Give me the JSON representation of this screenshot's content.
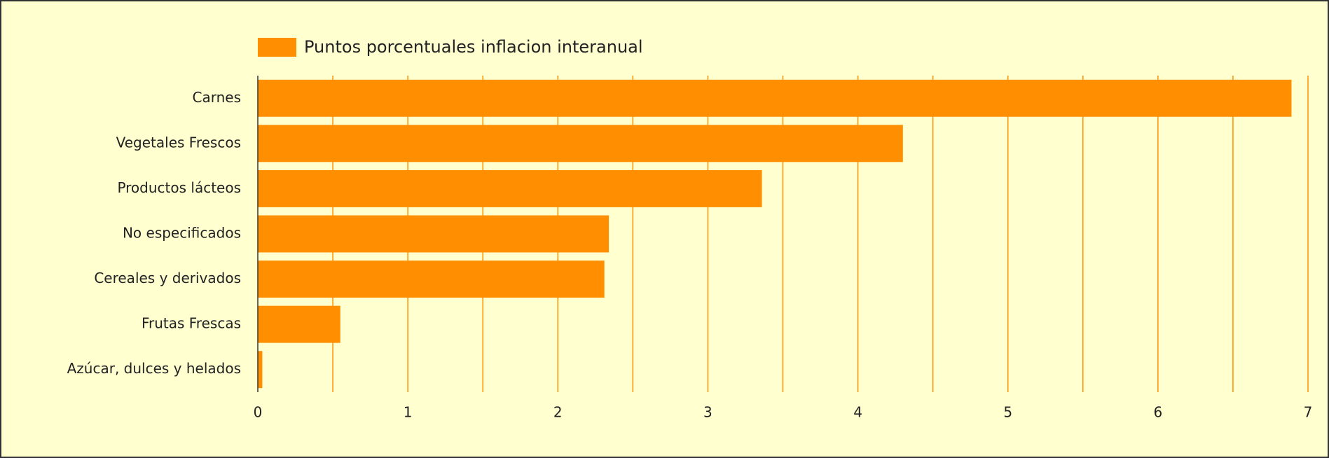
{
  "chart_data": {
    "type": "hbar",
    "legend": "Puntos porcentuales inflacion interanual",
    "legend_position": "top",
    "color": "#ff8f00",
    "grid_color": "#ff8f00",
    "categories": [
      "Carnes",
      "Vegetales Frescos",
      "Productos lácteos",
      "No especificados",
      "Cereales y derivados",
      "Frutas Frescas",
      "Azúcar, dulces y helados"
    ],
    "values": [
      6.89,
      4.3,
      3.36,
      2.34,
      2.31,
      0.55,
      0.03
    ],
    "xlim": [
      0,
      7
    ],
    "xticks": [
      0,
      1,
      2,
      3,
      4,
      5,
      6,
      7
    ],
    "xminorticks": [
      0.5,
      1.5,
      2.5,
      3.5,
      4.5,
      5.5,
      6.5
    ],
    "grid": true
  }
}
